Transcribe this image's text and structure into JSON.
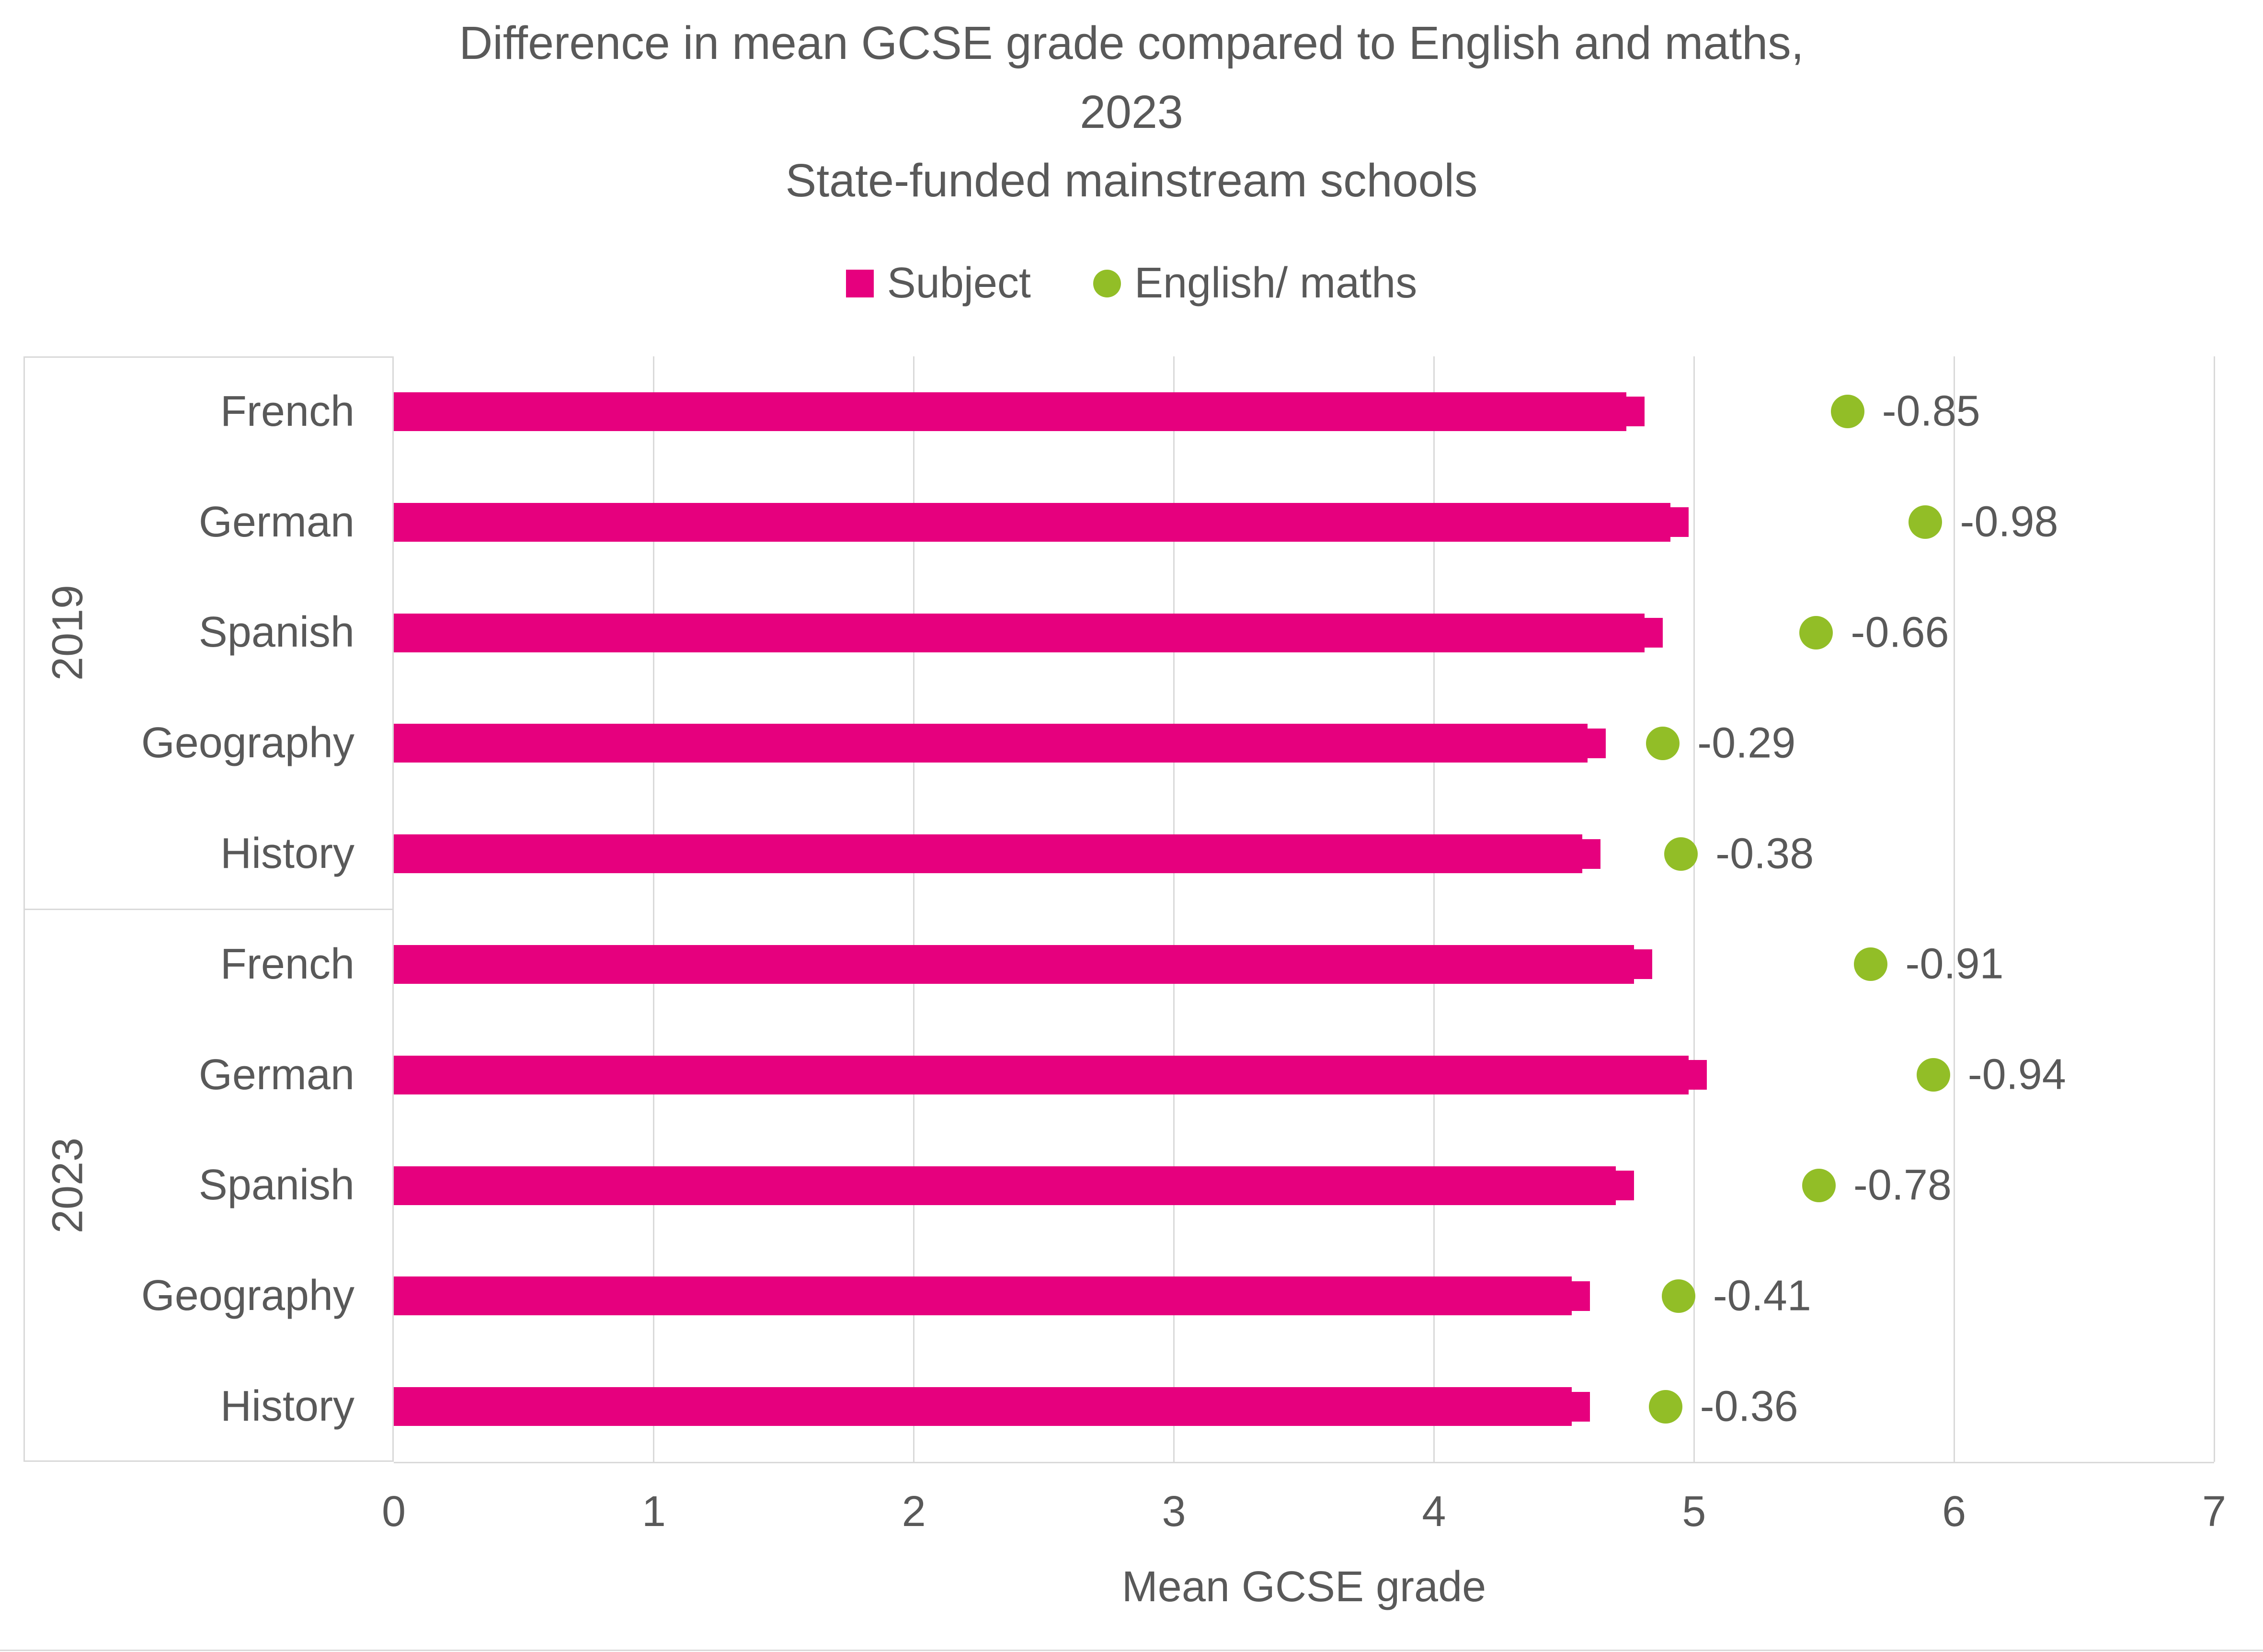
{
  "chart_data": {
    "type": "bar",
    "orientation": "horizontal",
    "title_line1": "Difference in mean GCSE grade compared to English and maths,",
    "title_line2": "2023",
    "subtitle": "State-funded mainstream schools",
    "legend": [
      {
        "label": "Subject",
        "marker": "square",
        "color": "#e6007e"
      },
      {
        "label": "English/ maths",
        "marker": "circle",
        "color": "#92be27"
      }
    ],
    "legend_position": "top",
    "xlabel": "Mean GCSE grade",
    "xlim": [
      0,
      7
    ],
    "x_ticks": [
      "0",
      "1",
      "2",
      "3",
      "4",
      "5",
      "6",
      "7"
    ],
    "grid": true,
    "groups": [
      {
        "year": "2019",
        "rows": [
          {
            "subject": "French",
            "subject_grade": 4.74,
            "english_maths_grade": 5.59,
            "difference_label": "-0.85"
          },
          {
            "subject": "German",
            "subject_grade": 4.91,
            "english_maths_grade": 5.89,
            "difference_label": "-0.98"
          },
          {
            "subject": "Spanish",
            "subject_grade": 4.81,
            "english_maths_grade": 5.47,
            "difference_label": "-0.66"
          },
          {
            "subject": "Geography",
            "subject_grade": 4.59,
            "english_maths_grade": 4.88,
            "difference_label": "-0.29"
          },
          {
            "subject": "History",
            "subject_grade": 4.57,
            "english_maths_grade": 4.95,
            "difference_label": "-0.38"
          }
        ]
      },
      {
        "year": "2023",
        "rows": [
          {
            "subject": "French",
            "subject_grade": 4.77,
            "english_maths_grade": 5.68,
            "difference_label": "-0.91"
          },
          {
            "subject": "German",
            "subject_grade": 4.98,
            "english_maths_grade": 5.92,
            "difference_label": "-0.94"
          },
          {
            "subject": "Spanish",
            "subject_grade": 4.7,
            "english_maths_grade": 5.48,
            "difference_label": "-0.78"
          },
          {
            "subject": "Geography",
            "subject_grade": 4.53,
            "english_maths_grade": 4.94,
            "difference_label": "-0.41"
          },
          {
            "subject": "History",
            "subject_grade": 4.53,
            "english_maths_grade": 4.89,
            "difference_label": "-0.36"
          }
        ]
      }
    ],
    "colors": {
      "bar": "#e6007e",
      "dot": "#92be27",
      "text": "#595959",
      "grid": "#d9d9d9"
    }
  }
}
